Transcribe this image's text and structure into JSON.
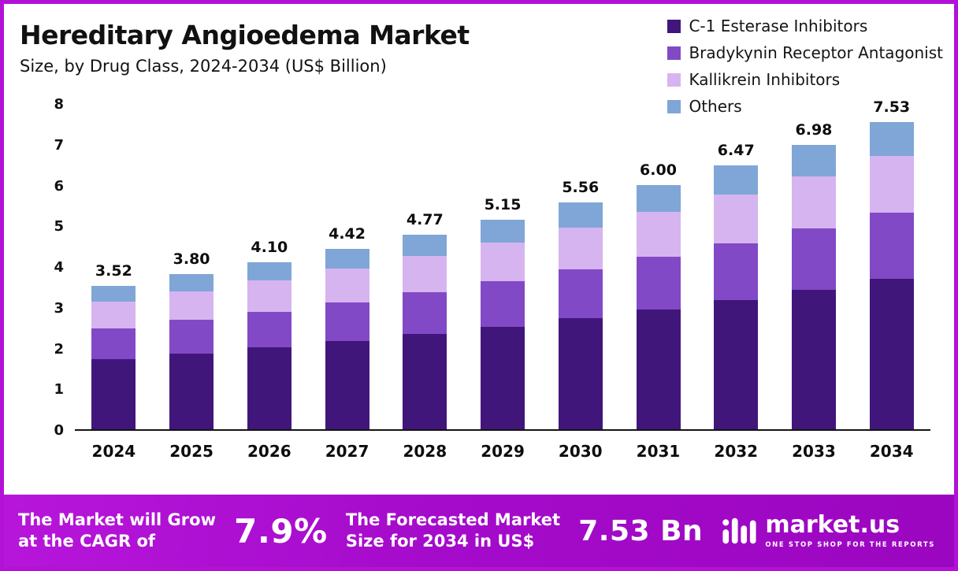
{
  "header": {
    "title": "Hereditary Angioedema Market",
    "subtitle": "Size, by Drug Class, 2024-2034 (US$ Billion)"
  },
  "legend": [
    {
      "label": "C-1 Esterase Inhibitors",
      "color": "#41167b"
    },
    {
      "label": "Bradykynin Receptor Antagonist",
      "color": "#8249c6"
    },
    {
      "label": "Kallikrein Inhibitors",
      "color": "#d6b4f0"
    },
    {
      "label": "Others",
      "color": "#7fa6d6"
    }
  ],
  "chart_data": {
    "type": "bar",
    "stacked": true,
    "title": "Hereditary Angioedema Market Size, by Drug Class, 2024-2034 (US$ Billion)",
    "categories": [
      "2024",
      "2025",
      "2026",
      "2027",
      "2028",
      "2029",
      "2030",
      "2031",
      "2032",
      "2033",
      "2034"
    ],
    "totals": [
      3.52,
      3.8,
      4.1,
      4.42,
      4.77,
      5.15,
      5.56,
      6.0,
      6.47,
      6.98,
      7.53
    ],
    "series": [
      {
        "name": "C-1 Esterase Inhibitors",
        "color": "#41167b",
        "values": [
          1.72,
          1.86,
          2.01,
          2.17,
          2.34,
          2.52,
          2.72,
          2.94,
          3.17,
          3.42,
          3.69
        ]
      },
      {
        "name": "Bradykynin Receptor Antagonist",
        "color": "#8249c6",
        "values": [
          0.76,
          0.82,
          0.88,
          0.95,
          1.03,
          1.11,
          1.2,
          1.29,
          1.39,
          1.5,
          1.62
        ]
      },
      {
        "name": "Kallikrein Inhibitors",
        "color": "#d6b4f0",
        "values": [
          0.65,
          0.7,
          0.76,
          0.82,
          0.88,
          0.95,
          1.03,
          1.11,
          1.2,
          1.29,
          1.39
        ]
      },
      {
        "name": "Others",
        "color": "#7fa6d6",
        "values": [
          0.39,
          0.42,
          0.45,
          0.48,
          0.52,
          0.57,
          0.61,
          0.66,
          0.71,
          0.77,
          0.83
        ]
      }
    ],
    "xlabel": "",
    "ylabel": "",
    "ylim": [
      0,
      8
    ],
    "yticks": [
      0,
      1,
      2,
      3,
      4,
      5,
      6,
      7,
      8
    ],
    "grid": false,
    "legend_position": "top-right"
  },
  "banner": {
    "growth_text": "The Market will Grow\nat the CAGR of",
    "cagr_value": "7.9%",
    "forecast_text": "The Forecasted Market\nSize for 2034 in US$",
    "forecast_value": "7.53 Bn",
    "brand": {
      "name": "market.us",
      "tagline": "ONE STOP SHOP FOR THE REPORTS"
    }
  },
  "colors": {
    "page_border": "#b312d6",
    "banner_start": "#b716da",
    "banner_end": "#9b06c0",
    "text_dark": "#111111",
    "text_light": "#ffffff"
  }
}
